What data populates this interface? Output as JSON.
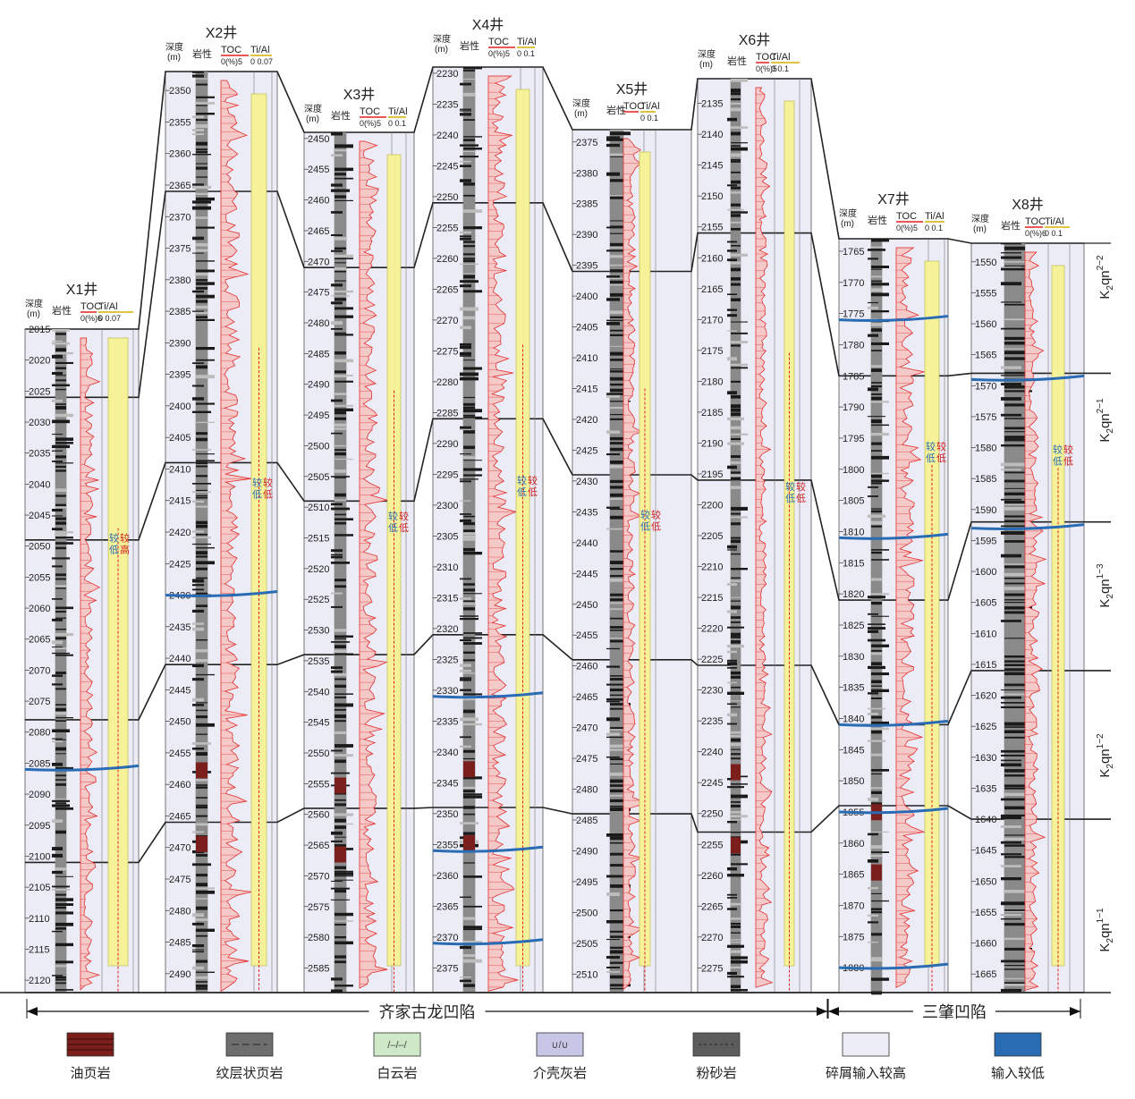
{
  "wells": [
    {
      "name": "X1井",
      "depth_top": 2015,
      "depth_bottom": 2122,
      "ticks": [
        2015,
        2020,
        2025,
        2030,
        2035,
        2040,
        2045,
        2050,
        2055,
        2060,
        2065,
        2070,
        2075,
        2080,
        2085,
        2090,
        2095,
        2100,
        2105,
        2110,
        2115,
        2120
      ],
      "toc_max": "0(%)6",
      "ti_range": "0 0.07",
      "notes": [
        "较低",
        "较高"
      ]
    },
    {
      "name": "X2井",
      "depth_top": 2347,
      "depth_bottom": 2493,
      "ticks": [
        2350,
        2355,
        2360,
        2365,
        2370,
        2375,
        2380,
        2385,
        2390,
        2395,
        2400,
        2405,
        2410,
        2415,
        2420,
        2425,
        2430,
        2435,
        2440,
        2445,
        2450,
        2455,
        2460,
        2465,
        2470,
        2475,
        2480,
        2485,
        2490
      ],
      "toc_max": "0(%)5",
      "ti_range": "0 0.07",
      "notes": [
        "较低",
        "较低"
      ]
    },
    {
      "name": "X3井",
      "depth_top": 2449,
      "depth_bottom": 2589,
      "ticks": [
        2450,
        2455,
        2460,
        2465,
        2470,
        2475,
        2480,
        2485,
        2490,
        2495,
        2500,
        2505,
        2510,
        2515,
        2520,
        2525,
        2530,
        2535,
        2540,
        2545,
        2550,
        2555,
        2560,
        2565,
        2570,
        2575,
        2580,
        2585
      ],
      "toc_max": "0(%)5",
      "ti_range": "0 0.1",
      "notes": [
        "较低",
        "较低"
      ]
    },
    {
      "name": "X4井",
      "depth_top": 2229,
      "depth_bottom": 2379,
      "ticks": [
        2230,
        2235,
        2240,
        2245,
        2250,
        2255,
        2260,
        2265,
        2270,
        2275,
        2280,
        2285,
        2290,
        2295,
        2300,
        2305,
        2310,
        2315,
        2320,
        2325,
        2330,
        2335,
        2340,
        2345,
        2350,
        2355,
        2360,
        2365,
        2370,
        2375
      ],
      "toc_max": "0(%)5",
      "ti_range": "0 0.1",
      "notes": [
        "较低",
        "较低"
      ]
    },
    {
      "name": "X5井",
      "depth_top": 2373,
      "depth_bottom": 2513,
      "ticks": [
        2375,
        2380,
        2385,
        2390,
        2395,
        2400,
        2405,
        2410,
        2415,
        2420,
        2425,
        2430,
        2435,
        2440,
        2445,
        2450,
        2455,
        2460,
        2465,
        2470,
        2475,
        2480,
        2485,
        2490,
        2495,
        2500,
        2505,
        2510
      ],
      "toc_max": "",
      "ti_range": "0 0.1",
      "notes": [
        "较低",
        "较低"
      ]
    },
    {
      "name": "X6井",
      "depth_top": 2131,
      "depth_bottom": 2279,
      "ticks": [
        2135,
        2140,
        2145,
        2150,
        2155,
        2160,
        2165,
        2170,
        2175,
        2180,
        2185,
        2190,
        2195,
        2200,
        2205,
        2210,
        2215,
        2220,
        2225,
        2230,
        2235,
        2240,
        2245,
        2250,
        2255,
        2260,
        2265,
        2270,
        2275
      ],
      "toc_max": "0(%)5",
      "ti_range": "0 0.1",
      "notes": [
        "较低",
        "较低"
      ]
    },
    {
      "name": "X7井",
      "depth_top": 1763,
      "depth_bottom": 1884,
      "ticks": [
        1765,
        1770,
        1775,
        1780,
        1785,
        1790,
        1795,
        1800,
        1805,
        1810,
        1815,
        1820,
        1825,
        1830,
        1835,
        1840,
        1845,
        1850,
        1855,
        1860,
        1865,
        1870,
        1875,
        1880
      ],
      "toc_max": "0(%)5",
      "ti_range": "0 0.1",
      "notes": [
        "较低",
        "较低"
      ]
    },
    {
      "name": "X8井",
      "depth_top": 1547,
      "depth_bottom": 1668,
      "ticks": [
        1550,
        1555,
        1560,
        1565,
        1570,
        1575,
        1580,
        1585,
        1590,
        1595,
        1600,
        1605,
        1610,
        1615,
        1620,
        1625,
        1630,
        1635,
        1640,
        1645,
        1650,
        1655,
        1660,
        1665
      ],
      "toc_max": "0(%)6",
      "ti_range": "0 0.1",
      "notes": [
        "较低",
        "较低"
      ]
    }
  ],
  "header": {
    "depth": "深度",
    "depth_unit": "(m)",
    "litho": "岩性",
    "toc": "TOC",
    "ti": "Ti/Al"
  },
  "units": [
    {
      "base": "K",
      "sub": "2",
      "name": "qn",
      "sup": "2−2"
    },
    {
      "base": "K",
      "sub": "2",
      "name": "qn",
      "sup": "2−1"
    },
    {
      "base": "K",
      "sub": "2",
      "name": "qn",
      "sup": "1−3"
    },
    {
      "base": "K",
      "sub": "2",
      "name": "qn",
      "sup": "1−2"
    },
    {
      "base": "K",
      "sub": "2",
      "name": "qn",
      "sup": "1−1"
    }
  ],
  "regions": {
    "left": "齐家古龙凹陷",
    "right": "三肇凹陷"
  },
  "legend": [
    {
      "label": "油页岩",
      "color": "#7a1f1c"
    },
    {
      "label": "纹层状页岩",
      "color": "#6e6e6e"
    },
    {
      "label": "白云岩",
      "color": "#cfe8c8"
    },
    {
      "label": "介壳灰岩",
      "color": "#c8c6e6"
    },
    {
      "label": "粉砂岩",
      "color": "#5c5c5c"
    },
    {
      "label": "碎屑输入较高",
      "color": "#ececf6"
    },
    {
      "label": "输入较低",
      "color": "#2a6cb4"
    }
  ]
}
